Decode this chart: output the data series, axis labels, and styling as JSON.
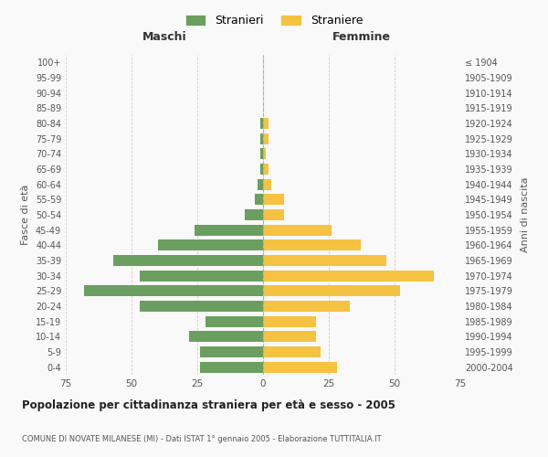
{
  "age_groups": [
    "0-4",
    "5-9",
    "10-14",
    "15-19",
    "20-24",
    "25-29",
    "30-34",
    "35-39",
    "40-44",
    "45-49",
    "50-54",
    "55-59",
    "60-64",
    "65-69",
    "70-74",
    "75-79",
    "80-84",
    "85-89",
    "90-94",
    "95-99",
    "100+"
  ],
  "birth_years": [
    "2000-2004",
    "1995-1999",
    "1990-1994",
    "1985-1989",
    "1980-1984",
    "1975-1979",
    "1970-1974",
    "1965-1969",
    "1960-1964",
    "1955-1959",
    "1950-1954",
    "1945-1949",
    "1940-1944",
    "1935-1939",
    "1930-1934",
    "1925-1929",
    "1920-1924",
    "1915-1919",
    "1910-1914",
    "1905-1909",
    "≤ 1904"
  ],
  "males": [
    24,
    24,
    28,
    22,
    47,
    68,
    47,
    57,
    40,
    26,
    7,
    3,
    2,
    1,
    1,
    1,
    1,
    0,
    0,
    0,
    0
  ],
  "females": [
    28,
    22,
    20,
    20,
    33,
    52,
    65,
    47,
    37,
    26,
    8,
    8,
    3,
    2,
    1,
    2,
    2,
    0,
    0,
    0,
    0
  ],
  "male_color": "#6a9f5f",
  "female_color": "#f5c242",
  "background_color": "#f9f9f9",
  "grid_color": "#cccccc",
  "title": "Popolazione per cittadinanza straniera per età e sesso - 2005",
  "subtitle": "COMUNE DI NOVATE MILANESE (MI) - Dati ISTAT 1° gennaio 2005 - Elaborazione TUTTITALIA.IT",
  "xlabel_left": "Maschi",
  "xlabel_right": "Femmine",
  "ylabel_left": "Fasce di età",
  "ylabel_right": "Anni di nascita",
  "legend_male": "Stranieri",
  "legend_female": "Straniere",
  "xlim": 75
}
